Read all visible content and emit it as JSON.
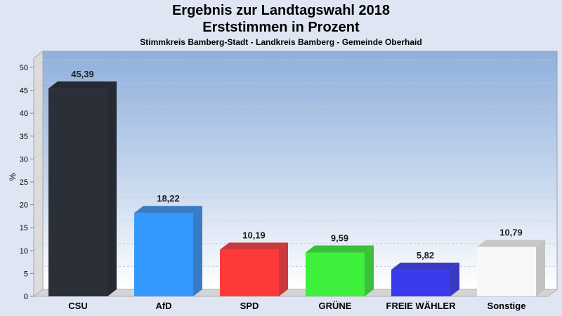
{
  "chart_data": {
    "type": "bar",
    "title": "Ergebnis zur Landtagswahl 2018",
    "subtitle": "Erststimmen in Prozent",
    "subtitle2": "Stimmkreis Bamberg-Stadt - Landkreis Bamberg - Gemeinde Oberhaid",
    "xlabel": "",
    "ylabel": "%",
    "ylim": [
      0,
      50
    ],
    "yticks": [
      0,
      5,
      10,
      15,
      20,
      25,
      30,
      35,
      40,
      45,
      50
    ],
    "grid": true,
    "categories": [
      "CSU",
      "AfD",
      "SPD",
      "GRÜNE",
      "FREIE WÄHLER",
      "Sonstige"
    ],
    "values": [
      45.39,
      18.22,
      10.19,
      9.59,
      5.82,
      10.79
    ],
    "value_labels": [
      "45,39",
      "18,22",
      "10,19",
      "9,59",
      "5,82",
      "10,79"
    ],
    "colors": [
      "#2b2f38",
      "#3399ff",
      "#ff3a3a",
      "#3cf03c",
      "#3a3aee",
      "#f8f8f8"
    ],
    "side_colors": [
      "#262a32",
      "#3a7cc4",
      "#c83a3e",
      "#3cc03c",
      "#3a3ac0",
      "#c2c2c2"
    ],
    "top_colors": [
      "#262a32",
      "#3a7cc4",
      "#c83a3e",
      "#3cc03c",
      "#3a3ac0",
      "#c8c8c8"
    ]
  }
}
